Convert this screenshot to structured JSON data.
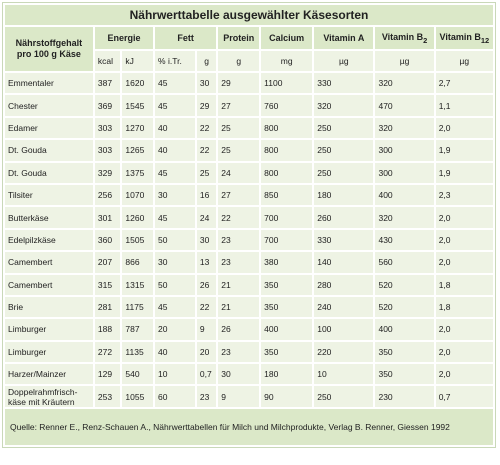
{
  "table": {
    "title": "Nährwerttabelle ausgewählter Käsesorten",
    "header": {
      "name": "Nährstoffgehalt pro 100 g Käse",
      "energie": "Energie",
      "fett": "Fett",
      "protein": "Protein",
      "calcium": "Calcium",
      "vitamin_a": "Vitamin A",
      "vitamin_b2": "Vitamin B",
      "vitamin_b2_sub": "2",
      "vitamin_b12": "Vitamin B",
      "vitamin_b12_sub": "12"
    },
    "units": [
      "kcal",
      "kJ",
      "% i.Tr.",
      "g",
      "g",
      "mg",
      "µg",
      "µg",
      "µg"
    ],
    "rows": [
      [
        "Emmentaler",
        "387",
        "1620",
        "45",
        "30",
        "29",
        "1100",
        "330",
        "320",
        "2,7"
      ],
      [
        "Chester",
        "369",
        "1545",
        "45",
        "29",
        "27",
        "760",
        "320",
        "470",
        "1,1"
      ],
      [
        "Edamer",
        "303",
        "1270",
        "40",
        "22",
        "25",
        "800",
        "250",
        "320",
        "2,0"
      ],
      [
        "Dt. Gouda",
        "303",
        "1265",
        "40",
        "22",
        "25",
        "800",
        "250",
        "300",
        "1,9"
      ],
      [
        "Dt. Gouda",
        "329",
        "1375",
        "45",
        "25",
        "24",
        "800",
        "250",
        "300",
        "1,9"
      ],
      [
        "Tilsiter",
        "256",
        "1070",
        "30",
        "16",
        "27",
        "850",
        "180",
        "400",
        "2,3"
      ],
      [
        "Butterkäse",
        "301",
        "1260",
        "45",
        "24",
        "22",
        "700",
        "260",
        "320",
        "2,0"
      ],
      [
        "Edelpilzkäse",
        "360",
        "1505",
        "50",
        "30",
        "23",
        "700",
        "330",
        "430",
        "2,0"
      ],
      [
        "Camembert",
        "207",
        "866",
        "30",
        "13",
        "23",
        "380",
        "140",
        "560",
        "2,0"
      ],
      [
        "Camembert",
        "315",
        "1315",
        "50",
        "26",
        "21",
        "350",
        "280",
        "520",
        "1,8"
      ],
      [
        "Brie",
        "281",
        "1175",
        "45",
        "22",
        "21",
        "350",
        "240",
        "520",
        "1,8"
      ],
      [
        "Limburger",
        "188",
        "787",
        "20",
        "9",
        "26",
        "400",
        "100",
        "400",
        "2,0"
      ],
      [
        "Limburger",
        "272",
        "1135",
        "40",
        "20",
        "23",
        "350",
        "220",
        "350",
        "2,0"
      ],
      [
        "Harzer/Mainzer",
        "129",
        "540",
        "10",
        "0,7",
        "30",
        "180",
        "10",
        "350",
        "2,0"
      ],
      [
        "Doppelrahmfrisch-käse mit Kräutern",
        "253",
        "1055",
        "60",
        "23",
        "9",
        "90",
        "250",
        "230",
        "0,7"
      ]
    ],
    "source": "Quelle: Renner E., Renz-Schauen A., Nährwerttabellen für Milch und Milchprodukte, Verlag B. Renner, Giessen 1992"
  }
}
